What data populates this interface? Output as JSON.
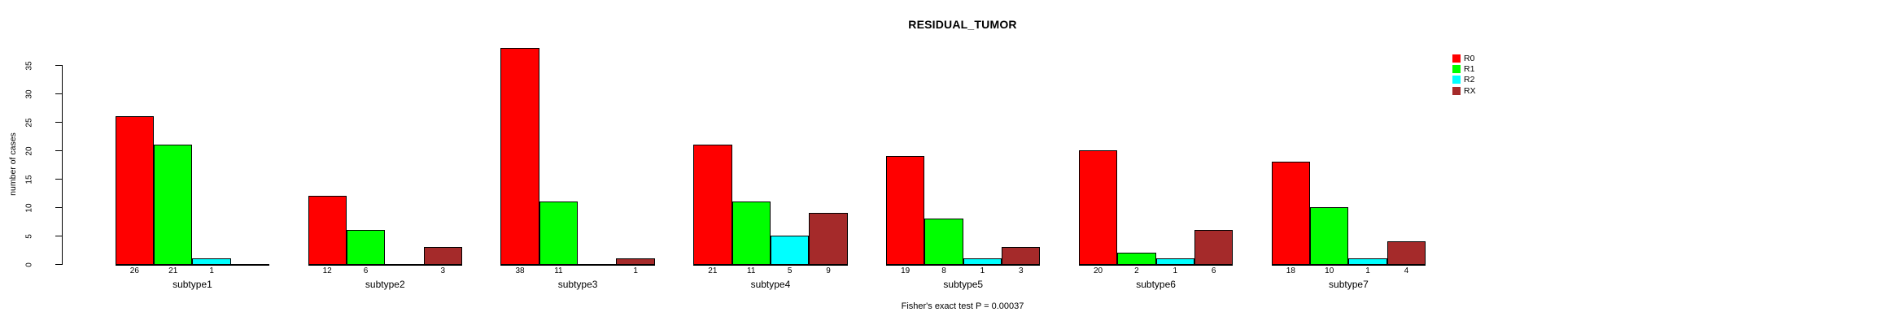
{
  "title": "RESIDUAL_TUMOR",
  "footer": "Fisher's exact test P = 0.00037",
  "y_axis": {
    "label": "number of cases",
    "ticks": [
      0,
      5,
      10,
      15,
      20,
      25,
      30,
      35
    ]
  },
  "chart_data": {
    "type": "bar",
    "title": "RESIDUAL_TUMOR",
    "xlabel": "",
    "ylabel": "number of cases",
    "ylim": [
      0,
      35
    ],
    "yticks": [
      0,
      5,
      10,
      15,
      20,
      25,
      30,
      35
    ],
    "grid": false,
    "legend_position": "right",
    "bar_labels": "values shown under each bar; zero values have no bar and no label",
    "annotation": "Fisher's exact test P = 0.00037",
    "categories": [
      "subtype1",
      "subtype2",
      "subtype3",
      "subtype4",
      "subtype5",
      "subtype6",
      "subtype7"
    ],
    "series": [
      {
        "name": "R0",
        "color": "#FF0000",
        "values": [
          26,
          12,
          38,
          21,
          19,
          20,
          18
        ]
      },
      {
        "name": "R1",
        "color": "#00FF00",
        "values": [
          21,
          6,
          11,
          11,
          8,
          2,
          10
        ]
      },
      {
        "name": "R2",
        "color": "#00FFFF",
        "values": [
          1,
          0,
          0,
          5,
          1,
          1,
          1
        ]
      },
      {
        "name": "RX",
        "color": "#A52A2A",
        "values": [
          0,
          3,
          1,
          9,
          3,
          6,
          4
        ]
      }
    ]
  },
  "legend": {
    "items": [
      {
        "label": "R0",
        "color": "#FF0000"
      },
      {
        "label": "R1",
        "color": "#00FF00"
      },
      {
        "label": "R2",
        "color": "#00FFFF"
      },
      {
        "label": "RX",
        "color": "#A52A2A"
      }
    ]
  }
}
